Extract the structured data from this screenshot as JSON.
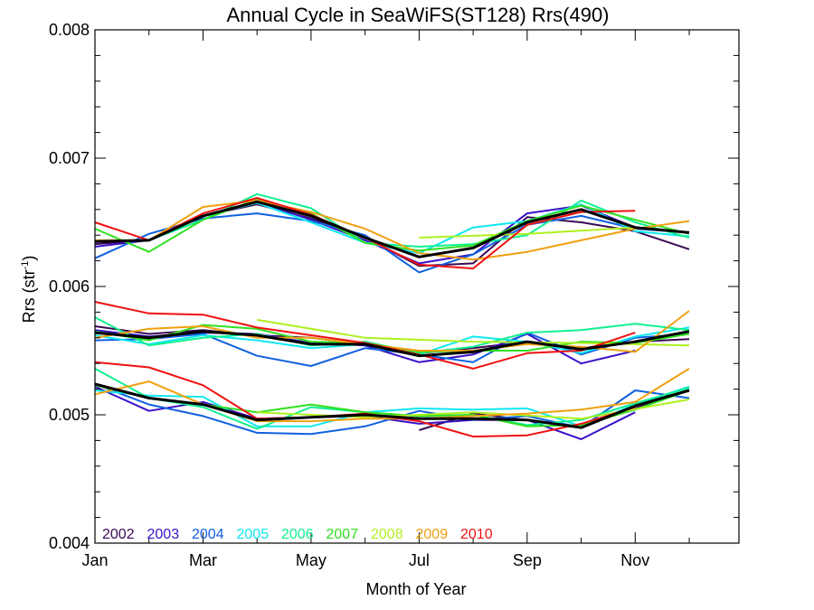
{
  "chart_data": {
    "type": "line",
    "title": "Annual Cycle in SeaWiFS(ST128) Rrs(490)",
    "xlabel": "Month of Year",
    "ylabel": "Rrs (str",
    "ylabel_sup": "-1",
    "ylabel_close": ")",
    "xlim": [
      1,
      12.92
    ],
    "ylim": [
      0.004,
      0.008
    ],
    "x_tick_labels": [
      {
        "x": 1,
        "label": "Jan"
      },
      {
        "x": 3,
        "label": "Mar"
      },
      {
        "x": 5,
        "label": "May"
      },
      {
        "x": 7,
        "label": "Jul"
      },
      {
        "x": 9,
        "label": "Sep"
      },
      {
        "x": 11,
        "label": "Nov"
      }
    ],
    "x_minor_ticks": [
      2,
      4,
      6,
      8,
      10,
      12
    ],
    "y_ticks": [
      {
        "y": 0.004,
        "label": "0.004"
      },
      {
        "y": 0.005,
        "label": "0.005"
      },
      {
        "y": 0.006,
        "label": "0.006"
      },
      {
        "y": 0.007,
        "label": "0.007"
      },
      {
        "y": 0.008,
        "label": "0.008"
      }
    ],
    "y_minor_step": 0.0002,
    "grid": false,
    "legend_position": "bottom-left, inside plot",
    "series": [
      {
        "name": "2002",
        "color": "#3a0a55",
        "groups": [
          {
            "x": [
              1,
              2,
              3,
              4,
              5,
              6,
              7,
              8,
              9,
              10,
              11,
              12
            ],
            "y": [
              0.00633,
              0.00636,
              0.00655,
              0.00664,
              0.00653,
              0.00638,
              0.00616,
              0.00618,
              0.00654,
              0.0065,
              0.00643,
              0.00629
            ]
          },
          {
            "x": [
              1,
              2,
              3,
              4,
              5,
              6,
              7,
              8,
              9,
              10,
              11,
              12
            ],
            "y": [
              0.00569,
              0.00563,
              0.00566,
              0.00562,
              0.0056,
              0.00555,
              0.00548,
              0.00552,
              0.00557,
              0.00552,
              0.00557,
              0.00559
            ]
          },
          {
            "x": [
              7,
              8,
              9,
              10,
              11,
              12
            ],
            "y": [
              0.00488,
              0.00501,
              0.00496,
              0.00491,
              0.00505,
              0.00519
            ]
          }
        ]
      },
      {
        "name": "2003",
        "color": "#3a10c8",
        "groups": [
          {
            "x": [
              1,
              2,
              3,
              4,
              5,
              6,
              7,
              8,
              9,
              10,
              11
            ],
            "y": [
              0.00631,
              0.00636,
              0.00655,
              0.00666,
              0.00652,
              0.00636,
              0.00618,
              0.00625,
              0.00657,
              0.00663,
              0.00646
            ]
          },
          {
            "x": [
              1,
              2,
              3,
              4,
              5,
              6,
              7,
              8,
              9,
              10,
              11
            ],
            "y": [
              0.00566,
              0.00561,
              0.00564,
              0.00563,
              0.00556,
              0.00554,
              0.00541,
              0.00547,
              0.00563,
              0.0054,
              0.0055
            ]
          },
          {
            "x": [
              1,
              2,
              3,
              4,
              5,
              6,
              7,
              8,
              9,
              10,
              11
            ],
            "y": [
              0.00522,
              0.00503,
              0.0051,
              0.00497,
              0.00498,
              0.00499,
              0.00493,
              0.00496,
              0.00496,
              0.00481,
              0.00502
            ]
          }
        ]
      },
      {
        "name": "2004",
        "color": "#1060e0",
        "groups": [
          {
            "x": [
              1,
              2,
              3,
              4,
              5,
              6,
              7,
              8,
              9,
              10,
              11,
              12
            ],
            "y": [
              0.00622,
              0.00641,
              0.00653,
              0.00657,
              0.00651,
              0.0064,
              0.00611,
              0.00625,
              0.00648,
              0.00655,
              0.00645,
              0.00642
            ]
          },
          {
            "x": [
              1,
              2,
              3,
              4,
              5,
              6,
              7,
              8,
              9,
              10,
              11,
              12
            ],
            "y": [
              0.00558,
              0.00559,
              0.00563,
              0.00546,
              0.00538,
              0.00552,
              0.00547,
              0.00541,
              0.00564,
              0.00547,
              0.0056,
              0.00563
            ]
          },
          {
            "x": [
              1,
              2,
              3,
              4,
              5,
              6,
              7,
              8,
              9,
              10,
              11,
              12
            ],
            "y": [
              0.00524,
              0.00508,
              0.00499,
              0.00486,
              0.00485,
              0.00491,
              0.00503,
              0.00496,
              0.00499,
              0.0049,
              0.00519,
              0.00513
            ]
          }
        ]
      },
      {
        "name": "2005",
        "color": "#10e8f0",
        "groups": [
          {
            "x": [
              1,
              2,
              3,
              4,
              5,
              6,
              7,
              8,
              9,
              10,
              11,
              12
            ],
            "y": [
              0.00636,
              0.00636,
              0.00655,
              0.00665,
              0.0065,
              0.00634,
              0.00626,
              0.00646,
              0.00651,
              0.00664,
              0.00643,
              0.00639
            ]
          },
          {
            "x": [
              1,
              2,
              3,
              4,
              5,
              6,
              7,
              8,
              9,
              10,
              11,
              12
            ],
            "y": [
              0.00562,
              0.00555,
              0.00562,
              0.00558,
              0.00552,
              0.00555,
              0.00547,
              0.00561,
              0.00557,
              0.00548,
              0.00561,
              0.00568
            ]
          },
          {
            "x": [
              1,
              2,
              3,
              4,
              5,
              6,
              7,
              8,
              9,
              10,
              11,
              12
            ],
            "y": [
              0.00519,
              0.00515,
              0.00514,
              0.00491,
              0.00491,
              0.00502,
              0.00505,
              0.00504,
              0.00505,
              0.00491,
              0.00508,
              0.00522
            ]
          }
        ]
      },
      {
        "name": "2006",
        "color": "#10f090",
        "groups": [
          {
            "x": [
              1,
              2,
              3,
              4,
              5,
              6,
              7,
              8,
              9,
              10,
              11,
              12
            ],
            "y": [
              0.00635,
              0.00636,
              0.00652,
              0.00672,
              0.00661,
              0.00634,
              0.00631,
              0.00633,
              0.0064,
              0.00667,
              0.0065,
              0.00638
            ]
          },
          {
            "x": [
              1,
              2,
              3,
              4,
              5,
              6,
              7,
              8,
              9,
              10,
              11,
              12
            ],
            "y": [
              0.00576,
              0.00554,
              0.0056,
              0.00563,
              0.00554,
              0.00557,
              0.00548,
              0.00553,
              0.00564,
              0.00566,
              0.00571,
              0.00566
            ]
          },
          {
            "x": [
              1,
              2,
              3,
              4,
              5,
              6,
              7,
              8,
              9,
              10,
              11,
              12
            ],
            "y": [
              0.00536,
              0.00513,
              0.00506,
              0.00489,
              0.00506,
              0.00502,
              0.00499,
              0.005,
              0.00492,
              0.00496,
              0.00509,
              0.00521
            ]
          }
        ]
      },
      {
        "name": "2007",
        "color": "#30e020",
        "groups": [
          {
            "x": [
              1,
              2,
              3,
              4,
              5,
              6,
              7,
              8,
              9,
              10,
              11,
              12
            ],
            "y": [
              0.00645,
              0.00627,
              0.00652,
              0.00668,
              0.00657,
              0.00634,
              0.00628,
              0.00632,
              0.00651,
              0.00663,
              0.00652,
              0.00641
            ]
          },
          {
            "x": [
              1,
              2,
              3,
              4,
              5,
              6,
              7,
              8,
              9,
              10,
              11,
              12
            ],
            "y": [
              0.00565,
              0.00558,
              0.0057,
              0.00567,
              0.00557,
              0.00556,
              0.00549,
              0.0055,
              0.0055,
              0.00557,
              0.00556,
              0.00563
            ]
          },
          {
            "x": [
              1,
              2,
              3,
              4,
              5,
              6,
              7,
              8,
              9,
              10,
              11,
              12
            ],
            "y": [
              0.00523,
              0.00513,
              0.00508,
              0.00502,
              0.00508,
              0.00502,
              0.00499,
              0.005,
              0.00491,
              0.00492,
              0.00504,
              0.00519
            ]
          }
        ]
      },
      {
        "name": "2008",
        "color": "#b0f020",
        "groups": [
          {
            "x": [
              7,
              9,
              11
            ],
            "y": [
              0.00638,
              0.00641,
              0.00646
            ]
          },
          {
            "x": [
              4,
              6,
              8,
              10,
              12
            ],
            "y": [
              0.00574,
              0.0056,
              0.00557,
              0.00556,
              0.00554
            ]
          },
          {
            "x": [
              4,
              6,
              8,
              10,
              12
            ],
            "y": [
              0.00502,
              0.00498,
              0.00502,
              0.00497,
              0.00512
            ]
          }
        ]
      },
      {
        "name": "2009",
        "color": "#f0a010",
        "groups": [
          {
            "x": [
              1,
              2,
              3,
              4,
              5,
              6,
              7,
              8,
              9,
              10,
              11,
              12
            ],
            "y": [
              0.00636,
              0.00636,
              0.00662,
              0.00667,
              0.00658,
              0.00645,
              0.00626,
              0.00621,
              0.00627,
              0.00636,
              0.00645,
              0.00651
            ]
          },
          {
            "x": [
              1,
              2,
              3,
              4,
              5,
              6,
              7,
              8,
              9,
              10,
              11,
              12
            ],
            "y": [
              0.0056,
              0.00567,
              0.00569,
              0.0056,
              0.0056,
              0.00555,
              0.0055,
              0.0055,
              0.00555,
              0.00553,
              0.00549,
              0.00581
            ]
          },
          {
            "x": [
              1,
              2,
              3,
              4,
              5,
              6,
              7,
              8,
              9,
              10,
              11,
              12
            ],
            "y": [
              0.00516,
              0.00526,
              0.00508,
              0.00495,
              0.00495,
              0.00497,
              0.00497,
              0.00499,
              0.00501,
              0.00504,
              0.0051,
              0.00536
            ]
          }
        ]
      },
      {
        "name": "2010",
        "color": "#f01010",
        "groups": [
          {
            "x": [
              1,
              2,
              3,
              4,
              5,
              6,
              7,
              8,
              9,
              10,
              11
            ],
            "y": [
              0.0065,
              0.00636,
              0.00657,
              0.00669,
              0.00656,
              0.00638,
              0.00617,
              0.00614,
              0.00648,
              0.00658,
              0.00659
            ]
          },
          {
            "x": [
              1,
              2,
              3,
              4,
              5,
              6,
              7,
              8,
              9,
              10,
              11
            ],
            "y": [
              0.00588,
              0.00579,
              0.00578,
              0.00568,
              0.00562,
              0.00556,
              0.00547,
              0.00536,
              0.00548,
              0.0055,
              0.00564
            ]
          },
          {
            "x": [
              1,
              2,
              3,
              4,
              5,
              6,
              7,
              8,
              9,
              10,
              11
            ],
            "y": [
              0.00541,
              0.00537,
              0.00523,
              0.00497,
              0.00498,
              0.00501,
              0.00495,
              0.00483,
              0.00484,
              0.00493,
              0.00506
            ]
          }
        ]
      },
      {
        "color": "#000000",
        "groups": [
          {
            "x": [
              1,
              2,
              3,
              4,
              5,
              6,
              7,
              8,
              9,
              10,
              11,
              12
            ],
            "y": [
              0.00635,
              0.00636,
              0.00655,
              0.00666,
              0.00655,
              0.00638,
              0.00623,
              0.0063,
              0.0065,
              0.0066,
              0.00646,
              0.00642
            ]
          },
          {
            "x": [
              1,
              2,
              3,
              4,
              5,
              6,
              7,
              8,
              9,
              10,
              11,
              12
            ],
            "y": [
              0.00564,
              0.0056,
              0.00565,
              0.00562,
              0.00555,
              0.00555,
              0.00546,
              0.00549,
              0.00557,
              0.00551,
              0.00557,
              0.00565
            ]
          },
          {
            "x": [
              1,
              2,
              3,
              4,
              5,
              6,
              7,
              8,
              9,
              10,
              11,
              12
            ],
            "y": [
              0.00524,
              0.00513,
              0.00508,
              0.00496,
              0.00498,
              0.005,
              0.00497,
              0.00497,
              0.00496,
              0.0049,
              0.00507,
              0.00519
            ]
          }
        ]
      }
    ]
  }
}
